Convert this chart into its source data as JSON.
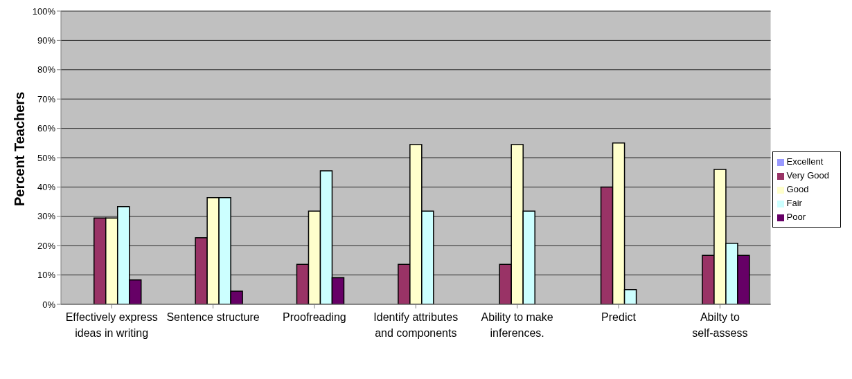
{
  "chart_data": {
    "type": "bar",
    "ylabel": "Percent Teachers",
    "categories": [
      "Effectively express ideas in writing",
      "Sentence structure",
      "Proofreading",
      "Identify attributes and components",
      "Ability to make inferences.",
      "Predict",
      "Abilty to self-assess"
    ],
    "series": [
      {
        "name": "Excellent",
        "color": "#9999ff",
        "values": [
          0,
          0,
          0,
          0,
          0,
          0,
          0
        ]
      },
      {
        "name": "Very Good",
        "color": "#993366",
        "values": [
          29.4,
          22.7,
          13.6,
          13.6,
          13.6,
          40,
          16.7
        ]
      },
      {
        "name": "Good",
        "color": "#ffffcc",
        "values": [
          29.4,
          36.4,
          31.8,
          54.5,
          54.5,
          55,
          46
        ]
      },
      {
        "name": "Fair",
        "color": "#ccffff",
        "values": [
          33.3,
          36.4,
          45.5,
          31.8,
          31.8,
          5,
          20.8
        ]
      },
      {
        "name": "Poor",
        "color": "#660066",
        "values": [
          8.3,
          4.5,
          9.1,
          0,
          0,
          0,
          16.7
        ]
      }
    ],
    "ylim": [
      0,
      100
    ],
    "yticks": [
      {
        "value": 0,
        "label": "0%"
      },
      {
        "value": 10,
        "label": "10%"
      },
      {
        "value": 20,
        "label": "20%"
      },
      {
        "value": 30,
        "label": "30%"
      },
      {
        "value": 40,
        "label": "40%"
      },
      {
        "value": 50,
        "label": "50%"
      },
      {
        "value": 60,
        "label": "60%"
      },
      {
        "value": 70,
        "label": "70%"
      },
      {
        "value": 80,
        "label": "80%"
      },
      {
        "value": 90,
        "label": "90%"
      },
      {
        "value": 100,
        "label": "100%"
      }
    ],
    "grid": "y",
    "legend": "right"
  }
}
